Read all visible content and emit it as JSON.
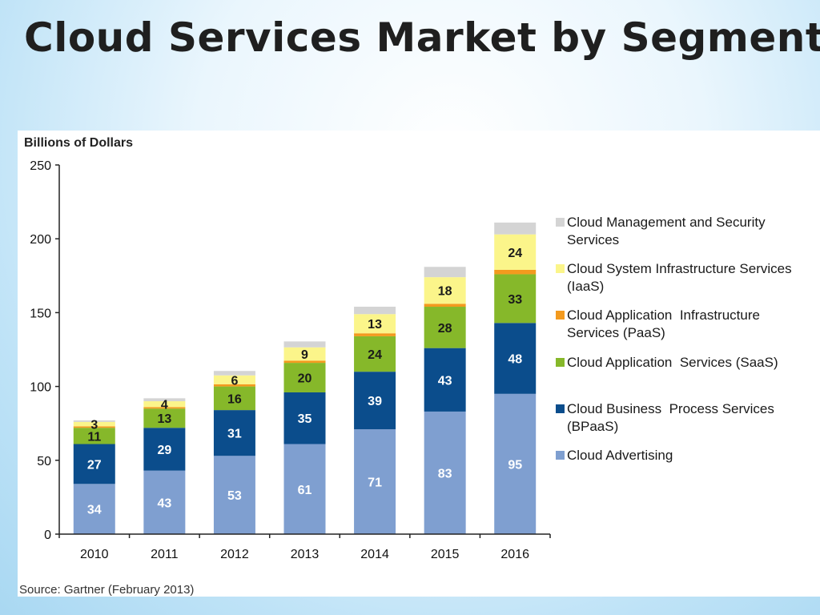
{
  "slide": {
    "title": "Cloud Services Market by Segment"
  },
  "source_note": "Source: Gartner (February 2013)",
  "colors": {
    "cloud_advertising": "#7f9fd0",
    "bpaas": "#0b4d8c",
    "saas": "#86b82a",
    "paas": "#f39a1e",
    "iaas": "#fbf58a",
    "management_security": "#d4d4d4"
  },
  "chart_data": {
    "type": "bar",
    "stacked": true,
    "ylabel": "Billions of Dollars",
    "xlabel": "",
    "ylim": [
      0,
      250
    ],
    "yticks": [
      0,
      50,
      100,
      150,
      200,
      250
    ],
    "categories": [
      "2010",
      "2011",
      "2012",
      "2013",
      "2014",
      "2015",
      "2016"
    ],
    "legend_position": "right",
    "series": [
      {
        "name": "Cloud Advertising",
        "color_key": "cloud_advertising",
        "values": [
          34,
          43,
          53,
          61,
          71,
          83,
          95
        ],
        "labels": [
          "34",
          "43",
          "53",
          "61",
          "71",
          "83",
          "95"
        ]
      },
      {
        "name": "Cloud Business Process Services (BPaaS)",
        "color_key": "bpaas",
        "values": [
          27,
          29,
          31,
          35,
          39,
          43,
          48
        ],
        "labels": [
          "27",
          "29",
          "31",
          "35",
          "39",
          "43",
          "48"
        ]
      },
      {
        "name": "Cloud Application Services (SaaS)",
        "color_key": "saas",
        "values": [
          11,
          13,
          16,
          20,
          24,
          28,
          33
        ],
        "labels": [
          "11",
          "13",
          "16",
          "20",
          "24",
          "28",
          "33"
        ]
      },
      {
        "name": "Cloud Application Infrastructure Services (PaaS)",
        "color_key": "paas",
        "values": [
          1,
          1,
          1.5,
          1.5,
          2,
          2,
          3
        ],
        "labels": [
          "",
          "",
          "",
          "",
          "",
          "",
          ""
        ]
      },
      {
        "name": "Cloud System Infrastructure Services (IaaS)",
        "color_key": "iaas",
        "values": [
          3,
          4,
          6,
          9,
          13,
          18,
          24
        ],
        "labels": [
          "3",
          "4",
          "6",
          "9",
          "13",
          "18",
          "24"
        ]
      },
      {
        "name": "Cloud Management and Security Services",
        "color_key": "management_security",
        "values": [
          1,
          2,
          3,
          4,
          5,
          7,
          8
        ],
        "labels": [
          "",
          "",
          "",
          "",
          "",
          "",
          ""
        ]
      }
    ]
  },
  "legend": [
    {
      "lines": [
        "Cloud Management and Security",
        "Services"
      ],
      "color_key": "management_security"
    },
    {
      "lines": [
        "Cloud System Infrastructure Services",
        "(IaaS)"
      ],
      "color_key": "iaas"
    },
    {
      "lines": [
        "Cloud Application  Infrastructure",
        "Services (PaaS)"
      ],
      "color_key": "paas"
    },
    {
      "lines": [
        "Cloud Application  Services (SaaS)"
      ],
      "color_key": "saas"
    },
    {
      "lines": [
        "Cloud Business  Process Services",
        "(BPaaS)"
      ],
      "color_key": "bpaas"
    },
    {
      "lines": [
        "Cloud Advertising"
      ],
      "color_key": "cloud_advertising"
    }
  ]
}
